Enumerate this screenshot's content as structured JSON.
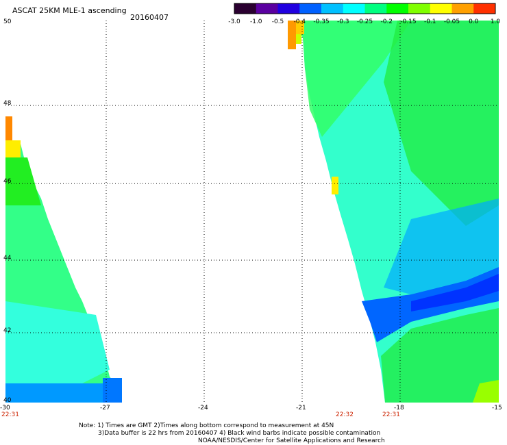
{
  "title": "ASCAT 25KM MLE-1 ascending",
  "date": "20160407",
  "colorbar": {
    "labels": [
      "-3.0",
      "-1.0",
      "-0.5",
      "-0.4",
      "-0.35",
      "-0.3",
      "-0.25",
      "-0.2",
      "-0.15",
      "-0.1",
      "-0.05",
      "0.0",
      "1.0"
    ],
    "colors": [
      "#2a0030",
      "#5a00a0",
      "#2000e0",
      "#0060ff",
      "#00c0ff",
      "#00ffff",
      "#00ff80",
      "#00ff00",
      "#80ff00",
      "#ffff00",
      "#ffa000",
      "#ff3000"
    ]
  },
  "axes": {
    "x_ticks": [
      "-30",
      "-27",
      "-24",
      "-21",
      "-18",
      "-15"
    ],
    "y_ticks": [
      "50",
      "48",
      "46",
      "44",
      "42",
      "40"
    ]
  },
  "times": [
    "22:31",
    "22:32",
    "22:31"
  ],
  "notes": [
    "Note: 1) Times are GMT 2)Times along bottom correspond to measurement at 45N",
    "3)Data buffer is 22 hrs from 20160407 4) Black wind barbs indicate possible contamination",
    "NOAA/NESDIS/Center for Satellite Applications and Research"
  ]
}
